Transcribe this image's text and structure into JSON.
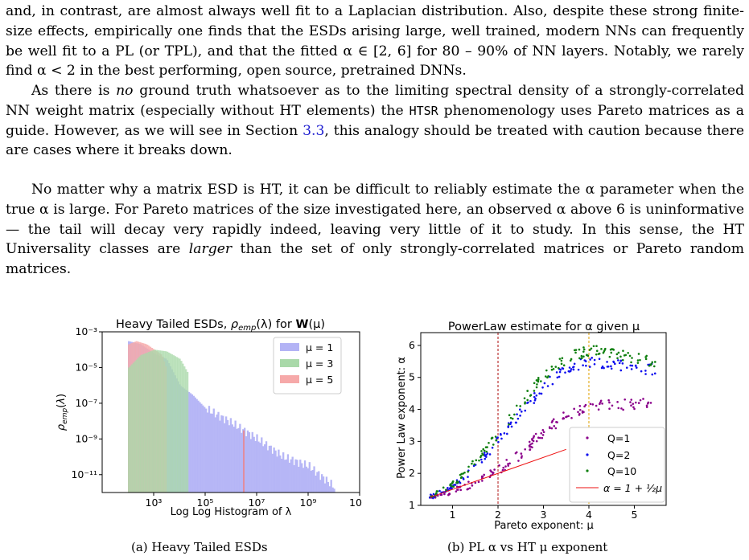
{
  "text": {
    "p1": "and, in contrast, are almost always well fit to a Laplacian distribution. Also, despite these strong finite-size effects, empirically one finds that the ESDs arising large, well trained, modern NNs can frequently be well fit to a PL (or TPL), and that the fitted α ∈ [2, 6] for 80 – 90% of NN layers. Notably, we rarely find α < 2 in the best performing, open source, pretrained DNNs.",
    "p2a": "As there is ",
    "p2b": "no",
    "p2c": " ground truth whatsoever as to the limiting spectral density of a strongly-correlated NN weight matrix (especially without HT elements) the ",
    "p2d": "HTSR",
    "p2e": " phenomenology uses Pareto matrices as a guide. However, as we will see in Section ",
    "p2f": "3.3",
    "p2g": ", this analogy should be treated with caution because there are cases where it breaks down.",
    "p3a": "No matter why a matrix ESD is HT, it can be difficult to reliably estimate the α parameter when the true α is large. For Pareto matrices of the size investigated here, an observed α above 6 is uninformative — the tail will decay very rapidly indeed, leaving very little of it to study. In this sense, the HT Universality classes are ",
    "p3b": "larger",
    "p3c": " than the set of only strongly-correlated matrices or Pareto random matrices."
  },
  "figure_a": {
    "caption": "(a) Heavy Tailed ESDs",
    "title_prefix": "Heavy Tailed ESDs, ",
    "title_rho": "ρ",
    "title_sub": "emp",
    "title_mid": "(λ) for ",
    "title_W": "W",
    "title_end": "(μ)",
    "xlabel": "Log Log Histogram of λ",
    "ylabel": "ρ_emp(λ)",
    "x_ticks": [
      "10³",
      "10⁵",
      "10⁷",
      "10⁹",
      "10¹¹"
    ],
    "y_ticks": [
      "10⁻³",
      "10⁻⁵",
      "10⁻⁷",
      "10⁻⁹",
      "10⁻¹¹"
    ],
    "legend": [
      "μ = 1",
      "μ = 3",
      "μ = 5"
    ],
    "colors": [
      "#b3b3f5",
      "#a9d9a9",
      "#f6a9a9"
    ]
  },
  "figure_b": {
    "caption": "(b) PL α vs HT μ exponent",
    "title": "PowerLaw estimate for α given μ",
    "xlabel": "Pareto exponent: μ",
    "ylabel": "Power Law exponent: α",
    "x_ticks": [
      "1",
      "2",
      "3",
      "4",
      "5"
    ],
    "y_ticks": [
      "1",
      "2",
      "3",
      "4",
      "5",
      "6"
    ],
    "legend": [
      "Q=1",
      "Q=2",
      "Q=10",
      "α = 1 + ½μ"
    ],
    "colors": [
      "#8b008b",
      "#1010ee",
      "#108010",
      "#ee1010"
    ]
  },
  "chart_data": [
    {
      "type": "area",
      "title": "Heavy Tailed ESDs, ρemp(λ) for W(μ)",
      "xlabel": "Log Log Histogram of λ",
      "ylabel": "ρemp(λ)",
      "xscale": "log",
      "yscale": "log",
      "xlim": [
        10.0,
        100000000000.0
      ],
      "ylim": [
        1e-12,
        0.001
      ],
      "legend_position": "top-right",
      "series": [
        {
          "name": "μ = 1",
          "x": [
            100.0,
            300.0,
            1000.0,
            3000.0,
            10000.0,
            30000.0,
            100000.0,
            1000000.0,
            10000000.0,
            100000000.0,
            1000000000.0,
            10000000000.0
          ],
          "y": [
            0.0003,
            0.0002,
            6e-05,
            3e-05,
            1e-06,
            3e-07,
            5e-08,
            8e-09,
            1e-09,
            1e-10,
            3e-11,
            2e-12
          ]
        },
        {
          "name": "μ = 3",
          "x": [
            100.0,
            300.0,
            1000.0,
            3000.0,
            10000.0,
            20000.0
          ],
          "y": [
            1e-05,
            5e-05,
            0.0001,
            8e-05,
            3e-05,
            5e-06
          ]
        },
        {
          "name": "μ = 5",
          "x": [
            100.0,
            200.0,
            500.0,
            1000.0,
            2000.0,
            3000.0
          ],
          "y": [
            0.0002,
            0.0003,
            0.0002,
            0.0001,
            5e-05,
            8e-06
          ]
        }
      ]
    },
    {
      "type": "scatter",
      "title": "PowerLaw estimate for α given μ",
      "xlabel": "Pareto exponent: μ",
      "ylabel": "Power Law exponent: α",
      "xlim": [
        0.3,
        5.7
      ],
      "ylim": [
        1,
        6.4
      ],
      "legend_position": "bottom-right",
      "vertical_lines": [
        2,
        4
      ],
      "series": [
        {
          "name": "Q=1",
          "x": [
            0.5,
            1.0,
            1.5,
            2.0,
            2.5,
            3.0,
            3.5,
            4.0,
            4.5,
            5.0,
            5.5
          ],
          "y": [
            1.25,
            1.45,
            1.7,
            2.1,
            2.6,
            3.3,
            3.8,
            4.1,
            4.15,
            4.15,
            4.2
          ]
        },
        {
          "name": "Q=2",
          "x": [
            0.5,
            1.0,
            1.5,
            2.0,
            2.5,
            3.0,
            3.5,
            4.0,
            4.5,
            5.0,
            5.5
          ],
          "y": [
            1.25,
            1.6,
            2.2,
            3.0,
            3.9,
            4.7,
            5.3,
            5.5,
            5.4,
            5.3,
            5.25
          ]
        },
        {
          "name": "Q=10",
          "x": [
            0.5,
            1.0,
            1.5,
            2.0,
            2.5,
            3.0,
            3.5,
            4.0,
            4.5,
            5.0,
            5.5
          ],
          "y": [
            1.25,
            1.65,
            2.35,
            3.2,
            4.2,
            5.0,
            5.6,
            5.85,
            5.8,
            5.6,
            5.5
          ]
        },
        {
          "name": "α = 1 + ½μ",
          "x": [
            0.5,
            3.5
          ],
          "y": [
            1.25,
            2.75
          ]
        }
      ]
    }
  ]
}
